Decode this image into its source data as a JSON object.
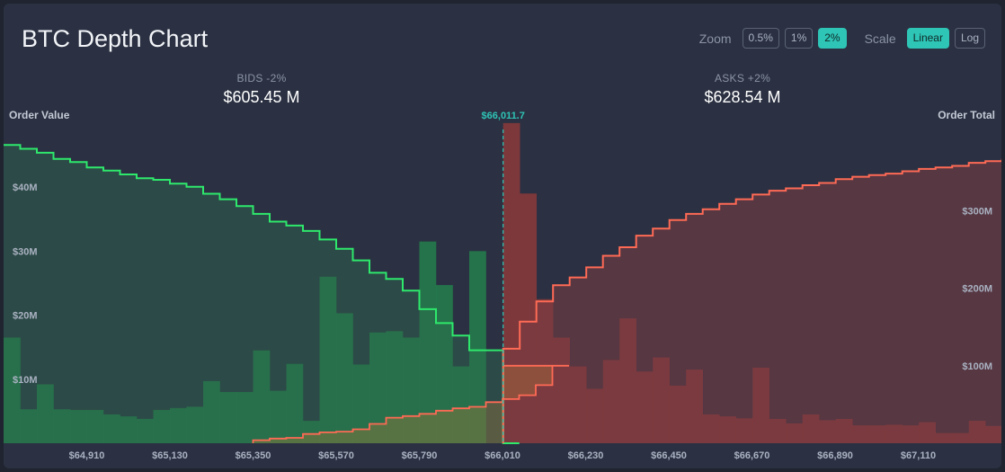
{
  "title": "BTC Depth Chart",
  "controls": {
    "zoom_label": "Zoom",
    "zoom_options": [
      "0.5%",
      "1%",
      "2%"
    ],
    "zoom_selected": "2%",
    "scale_label": "Scale",
    "scale_options": [
      "Linear",
      "Log"
    ],
    "scale_selected": "Linear"
  },
  "bids_summary": {
    "label": "BIDS -2%",
    "value": "$605.45 M"
  },
  "asks_summary": {
    "label": "ASKS +2%",
    "value": "$628.54 M"
  },
  "colors": {
    "bid": "#2ee86c",
    "ask": "#ff6a55",
    "mid": "#2ec4b6",
    "panel": "#2b3142"
  },
  "chart_data": {
    "type": "area",
    "mid_price_label": "$66,011.7",
    "mid_price": 66011.7,
    "left_axis_title": "Order Value",
    "right_axis_title": "Order Total",
    "left_ticks": [
      "$10M",
      "$20M",
      "$30M",
      "$40M"
    ],
    "left_tick_values": [
      10,
      20,
      30,
      40
    ],
    "right_ticks": [
      "$100M",
      "$200M",
      "$300M"
    ],
    "right_tick_values": [
      100,
      200,
      300
    ],
    "x_ticks": [
      "$64,910",
      "$65,130",
      "$65,350",
      "$65,570",
      "$65,790",
      "$66,010",
      "$66,230",
      "$66,450",
      "$66,670",
      "$66,890",
      "$67,110"
    ],
    "x_tick_values": [
      64910,
      65130,
      65350,
      65570,
      65790,
      66010,
      66230,
      66450,
      66670,
      66890,
      67110
    ],
    "xlim": [
      64690,
      67330
    ],
    "left_ylim": [
      0,
      49
    ],
    "right_ylim": [
      0,
      405
    ],
    "bucket_width": 44,
    "bids": {
      "price_start": 64690,
      "order_value": [
        16.5,
        5.3,
        9.2,
        5.3,
        5.2,
        5.2,
        4.5,
        4.2,
        3.8,
        5.2,
        5.5,
        5.7,
        9.7,
        8.0,
        8.0,
        14.5,
        8.2,
        12.4,
        3.5,
        26.0,
        20.3,
        12.3,
        17.3,
        17.5,
        16.5,
        31.5,
        24.7,
        12.0,
        30.0
      ],
      "cumulative_total": [
        385,
        380,
        375,
        367,
        363,
        356,
        352,
        347,
        342,
        340,
        335,
        331,
        322,
        315,
        306,
        296,
        286,
        281,
        274,
        263,
        251,
        236,
        220,
        212,
        197,
        173,
        155,
        139,
        120
      ]
    },
    "asks": {
      "price_start": 66011.7,
      "order_value": [
        50.0,
        39.0,
        22.5,
        16.5,
        12.0,
        8.5,
        13.0,
        19.5,
        11.2,
        13.4,
        9.0,
        11.5,
        4.5,
        4.2,
        3.9,
        11.8,
        3.8,
        3.1,
        4.5,
        3.6,
        3.8,
        2.8,
        2.8,
        2.9,
        2.8,
        3.3,
        1.6,
        1.6,
        3.5,
        2.7,
        1.8,
        1.9,
        1.7
      ],
      "cumulative_total": [
        122,
        157,
        183,
        204,
        214,
        227,
        242,
        253,
        268,
        277,
        288,
        296,
        302,
        309,
        315,
        321,
        326,
        329,
        333,
        336,
        341,
        344,
        346,
        348,
        351,
        354,
        356,
        358,
        362,
        364,
        366,
        369,
        371
      ]
    },
    "bid_overlay": {
      "price_start": 65350,
      "cumulative_total": [
        4,
        6,
        7,
        12,
        14,
        15,
        18,
        25,
        33,
        35,
        38,
        42,
        45,
        47,
        53,
        57,
        62,
        75,
        100
      ]
    }
  }
}
